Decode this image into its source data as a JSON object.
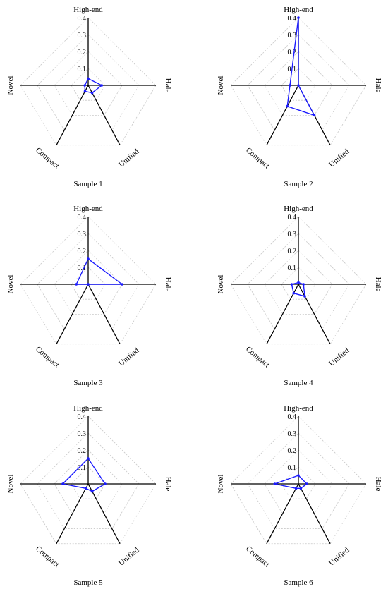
{
  "colors": {
    "series": "#1a1aff",
    "axis": "#000000",
    "grid": "#c8c8c8"
  },
  "chart_data": [
    {
      "type": "radar",
      "title": "Sample 1",
      "axes": [
        "High-end",
        "Hale",
        "Unified",
        "Compact",
        "Novel"
      ],
      "ticks": [
        "0.1",
        "0.2",
        "0.3",
        "0.4"
      ],
      "rmax": 0.4,
      "values": [
        0.04,
        0.08,
        0.05,
        0.04,
        0.02
      ]
    },
    {
      "type": "radar",
      "title": "Sample 2",
      "axes": [
        "High-end",
        "Hale",
        "Unified",
        "Compact",
        "Novel"
      ],
      "ticks": [
        "0.1",
        "0.2",
        "0.3",
        "0.4"
      ],
      "rmax": 0.4,
      "values": [
        0.4,
        0.0,
        0.2,
        0.14,
        0.05
      ]
    },
    {
      "type": "radar",
      "title": "Sample 3",
      "axes": [
        "High-end",
        "Hale",
        "Unified",
        "Compact",
        "Novel"
      ],
      "ticks": [
        "0.1",
        "0.2",
        "0.3",
        "0.4"
      ],
      "rmax": 0.4,
      "values": [
        0.15,
        0.2,
        0.0,
        0.0,
        0.07
      ]
    },
    {
      "type": "radar",
      "title": "Sample 4",
      "axes": [
        "High-end",
        "Hale",
        "Unified",
        "Compact",
        "Novel"
      ],
      "ticks": [
        "0.1",
        "0.2",
        "0.3",
        "0.4"
      ],
      "rmax": 0.4,
      "values": [
        0.01,
        0.03,
        0.08,
        0.06,
        0.04
      ]
    },
    {
      "type": "radar",
      "title": "Sample 5",
      "axes": [
        "High-end",
        "Hale",
        "Unified",
        "Compact",
        "Novel"
      ],
      "ticks": [
        "0.1",
        "0.2",
        "0.3",
        "0.4"
      ],
      "rmax": 0.4,
      "values": [
        0.15,
        0.1,
        0.05,
        0.03,
        0.15
      ]
    },
    {
      "type": "radar",
      "title": "Sample 6",
      "axes": [
        "High-end",
        "Hale",
        "Unified",
        "Compact",
        "Novel"
      ],
      "ticks": [
        "0.1",
        "0.2",
        "0.3",
        "0.4"
      ],
      "rmax": 0.4,
      "values": [
        0.05,
        0.05,
        0.03,
        0.03,
        0.14
      ]
    }
  ]
}
